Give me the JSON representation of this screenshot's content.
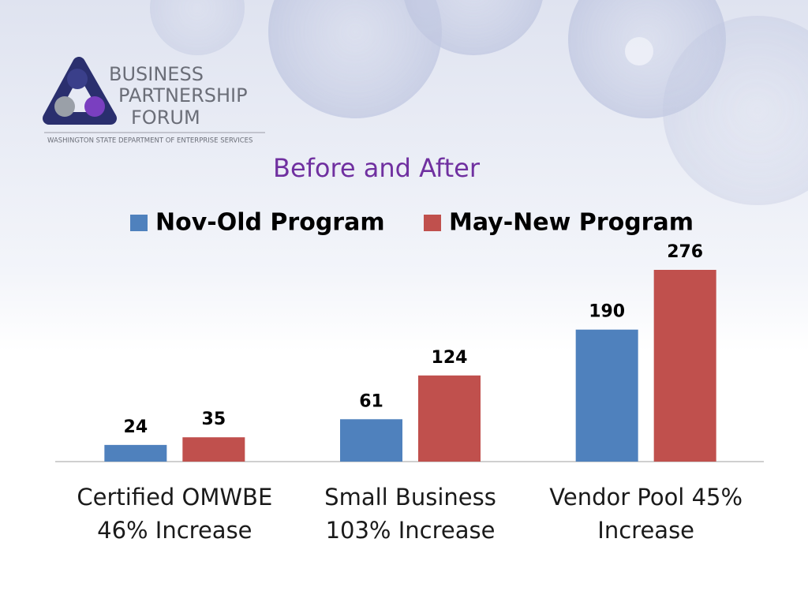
{
  "logo": {
    "lines": [
      "BUSINESS",
      "PARTNERSHIP",
      "FORUM"
    ],
    "tagline": "WASHINGTON STATE DEPARTMENT OF ENTERPRISE SERVICES"
  },
  "chart_data": {
    "type": "bar",
    "title": "Before and After",
    "categories": [
      [
        "Certified OMWBE",
        "46% Increase"
      ],
      [
        "Small Business",
        "103% Increase"
      ],
      [
        "Vendor Pool 45%",
        "Increase"
      ]
    ],
    "series": [
      {
        "name": "Nov-Old Program",
        "color": "#4f81bd",
        "values": [
          24,
          61,
          190
        ]
      },
      {
        "name": "May-New Program",
        "color": "#c0504d",
        "values": [
          35,
          124,
          276
        ]
      }
    ],
    "legend": "top"
  }
}
